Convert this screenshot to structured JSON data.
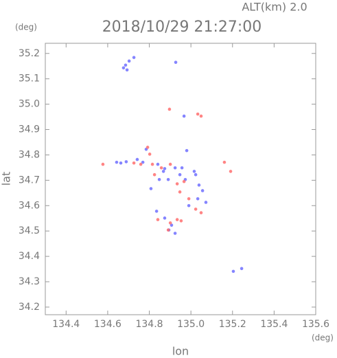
{
  "chart_data": {
    "type": "scatter",
    "title": "2018/10/29 21:27:00",
    "subtitle": "ALT(km) 2.0",
    "x_label": "lon",
    "y_label": "lat",
    "x_unit": "(deg)",
    "y_unit": "(deg)",
    "xlim": [
      134.3,
      135.6
    ],
    "ylim": [
      34.17,
      35.24
    ],
    "xticks": [
      134.4,
      134.6,
      134.8,
      {
        "value": 135,
        "label": "135.0"
      },
      135.2,
      135.4,
      135.6
    ],
    "yticks": [
      34.2,
      34.3,
      34.4,
      34.5,
      34.6,
      34.7,
      34.8,
      34.9,
      {
        "value": 35,
        "label": "35.0"
      },
      35.1,
      35.2
    ],
    "series": [
      {
        "color": "#6f6fff",
        "x": [
          134.676,
          134.693,
          134.703,
          134.686,
          134.726,
          134.927,
          134.967,
          134.98,
          134.643,
          134.663,
          134.689,
          134.742,
          134.769,
          134.785,
          134.841,
          134.868,
          134.891,
          134.924,
          134.947,
          134.973,
          135.016,
          135.039,
          135.056,
          135.033,
          134.99,
          134.835,
          134.874,
          134.907,
          134.894,
          134.924,
          134.848,
          135.204,
          134.808,
          135.072,
          134.874,
          134.957,
          135.023,
          135.244
        ],
        "values": [
          35.143,
          35.135,
          35.17,
          35.154,
          35.184,
          35.165,
          34.953,
          34.817,
          34.771,
          34.768,
          34.773,
          34.782,
          34.771,
          34.822,
          34.763,
          34.735,
          34.703,
          34.749,
          34.722,
          34.703,
          34.735,
          34.681,
          34.659,
          34.627,
          34.6,
          34.578,
          34.551,
          34.523,
          34.504,
          34.491,
          34.703,
          34.341,
          34.667,
          34.613,
          34.746,
          34.749,
          34.722,
          34.352
        ]
      },
      {
        "color": "#ff6f6f",
        "x": [
          134.577,
          134.897,
          135.033,
          135.049,
          134.792,
          134.802,
          134.815,
          134.858,
          134.901,
          134.934,
          134.967,
          135.023,
          134.901,
          134.934,
          134.953,
          135.049,
          134.891,
          135.161,
          135.191,
          134.726,
          134.759,
          134.825,
          134.99,
          134.841,
          134.947
        ],
        "values": [
          34.763,
          34.98,
          34.961,
          34.953,
          34.83,
          34.803,
          34.763,
          34.749,
          34.763,
          34.686,
          34.695,
          34.586,
          34.532,
          34.545,
          34.54,
          34.572,
          34.504,
          34.771,
          34.735,
          34.768,
          34.763,
          34.722,
          34.627,
          34.545,
          34.654
        ]
      }
    ]
  }
}
